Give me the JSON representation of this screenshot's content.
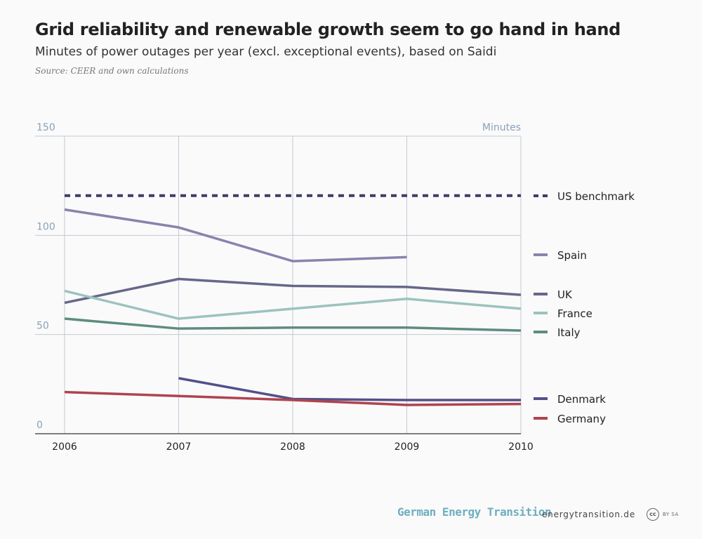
{
  "header": {
    "title": "Grid reliability and renewable growth seem to go hand in hand",
    "subtitle": "Minutes of power outages per year (excl. exceptional events), based on Saidi",
    "source": "Source: CEER and own calculations"
  },
  "chart_data": {
    "type": "line",
    "title": "Grid reliability and renewable growth seem to go hand in hand",
    "subtitle": "Minutes of power outages per year (excl. exceptional events), based on Saidi",
    "ylabel": "Minutes",
    "xlabel": "",
    "x": [
      "2006",
      "2007",
      "2008",
      "2009",
      "2010"
    ],
    "ylim": [
      0,
      150
    ],
    "yticks": [
      "0",
      "50",
      "100",
      "150"
    ],
    "grid": true,
    "legend": "right",
    "series": [
      {
        "name": "US benchmark",
        "values": [
          120,
          120,
          120,
          120,
          120
        ],
        "color": "#3e3d66",
        "dashed": true
      },
      {
        "name": "Spain",
        "values": [
          113,
          104,
          87,
          89,
          null
        ],
        "color": "#8b82ad"
      },
      {
        "name": "UK",
        "values": [
          66,
          78,
          74.5,
          74,
          70
        ],
        "color": "#67678c"
      },
      {
        "name": "France",
        "values": [
          72,
          58,
          63,
          68,
          63
        ],
        "color": "#9cc3bd"
      },
      {
        "name": "Italy",
        "values": [
          58,
          53,
          53.5,
          53.5,
          52
        ],
        "color": "#5e8c7f"
      },
      {
        "name": "Denmark",
        "values": [
          null,
          28,
          17.5,
          17,
          17
        ],
        "color": "#53508a"
      },
      {
        "name": "Germany",
        "values": [
          21,
          19,
          17,
          14.5,
          15
        ],
        "color": "#b0434f"
      }
    ]
  },
  "footer": {
    "brand": "German Energy Transition",
    "site": "energytransition.de",
    "cc_label": "cc",
    "license": "BY SA"
  }
}
